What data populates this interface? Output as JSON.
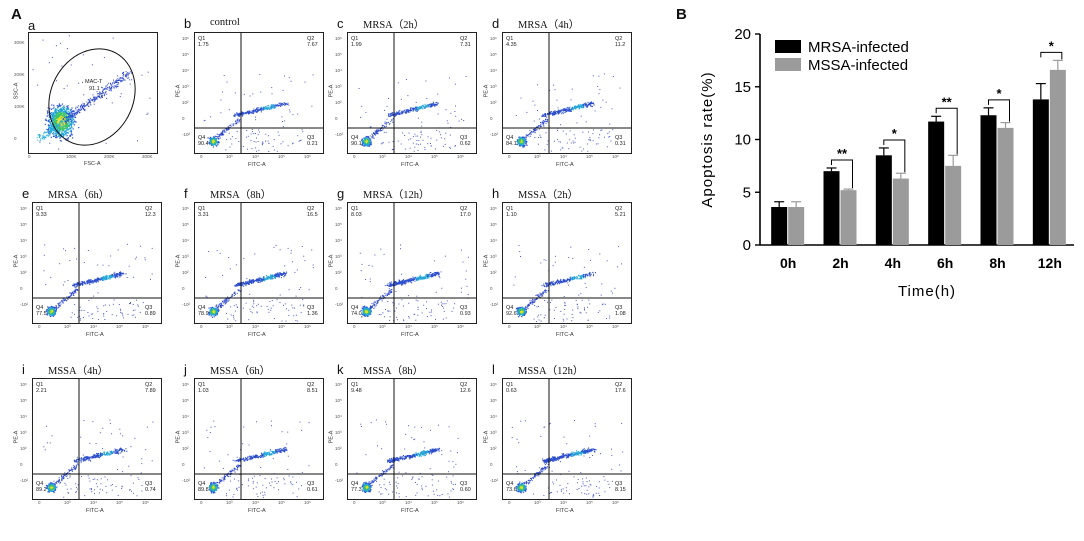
{
  "panels": {
    "A_label": "A",
    "B_label": "B"
  },
  "flow": {
    "gate": {
      "letter": "a",
      "gate_name": "MAC-T",
      "gate_value": "91.1",
      "xlabel": "FSC-A",
      "ylabel": "SSC-A",
      "yticks": [
        "300K",
        "200K",
        "100K",
        "0"
      ],
      "xticks": [
        "0",
        "100K",
        "200K",
        "300K"
      ]
    },
    "plots": [
      {
        "letter": "b",
        "title": "control",
        "q1": "1.75",
        "q2": "7.67",
        "q3": "0.21",
        "q4": "90.4",
        "xlabel": "FITC-A",
        "ylabel": "PE-A"
      },
      {
        "letter": "c",
        "title": "MRSA（2h）",
        "q1": "1.99",
        "q2": "7.31",
        "q3": "0.62",
        "q4": "90.1",
        "xlabel": "FITC-A",
        "ylabel": "PE-A"
      },
      {
        "letter": "d",
        "title": "MRSA（4h）",
        "q1": "4.35",
        "q2": "11.2",
        "q3": "0.31",
        "q4": "84.1",
        "xlabel": "FITC-A",
        "ylabel": "PE-A"
      },
      {
        "letter": "e",
        "title": "MRSA（6h）",
        "q1": "9.33",
        "q2": "12.3",
        "q3": "0.89",
        "q4": "77.5",
        "xlabel": "FITC-A",
        "ylabel": "PE-A"
      },
      {
        "letter": "f",
        "title": "MRSA（8h）",
        "q1": "3.31",
        "q2": "16.5",
        "q3": "1.36",
        "q4": "78.9",
        "xlabel": "FITC-A",
        "ylabel": "PE-A"
      },
      {
        "letter": "g",
        "title": "MRSA（12h）",
        "q1": "8.03",
        "q2": "17.0",
        "q3": "0.93",
        "q4": "74.0",
        "xlabel": "FITC-A",
        "ylabel": "PE-A"
      },
      {
        "letter": "h",
        "title": "MSSA（2h）",
        "q1": "1.10",
        "q2": "5.21",
        "q3": "1.08",
        "q4": "92.6",
        "xlabel": "FITC-A",
        "ylabel": "PE-A"
      },
      {
        "letter": "i",
        "title": "MSSA（4h）",
        "q1": "2.21",
        "q2": "7.89",
        "q3": "0.74",
        "q4": "89.2",
        "xlabel": "FITC-A",
        "ylabel": "PE-A"
      },
      {
        "letter": "j",
        "title": "MSSA（6h）",
        "q1": "1.03",
        "q2": "8.51",
        "q3": "0.61",
        "q4": "89.8",
        "xlabel": "FITC-A",
        "ylabel": "PE-A"
      },
      {
        "letter": "k",
        "title": "MSSA（8h）",
        "q1": "9.48",
        "q2": "12.6",
        "q3": "0.60",
        "q4": "77.3",
        "xlabel": "FITC-A",
        "ylabel": "PE-A"
      },
      {
        "letter": "l",
        "title": "MSSA（12h）",
        "q1": "0.63",
        "q2": "17.6",
        "q3": "8.15",
        "q4": "73.6",
        "xlabel": "FITC-A",
        "ylabel": "PE-A"
      }
    ],
    "quadrant_names": {
      "q1": "Q1",
      "q2": "Q2",
      "q3": "Q3",
      "q4": "Q4"
    },
    "y_ticks": [
      "10⁶",
      "10⁵",
      "10⁴",
      "10³",
      "10²",
      "0",
      "-10²"
    ],
    "x_ticks": [
      "0",
      "10³",
      "10⁴",
      "10⁵",
      "10⁶"
    ]
  },
  "chart_data": {
    "type": "bar",
    "title": "",
    "xlabel": "Time(h)",
    "ylabel": "Apoptosis rate(%)",
    "ylim": [
      0,
      20
    ],
    "yticks": [
      0,
      5,
      10,
      15,
      20
    ],
    "categories": [
      "0h",
      "2h",
      "4h",
      "6h",
      "8h",
      "12h"
    ],
    "series": [
      {
        "name": "MRSA-infected",
        "color": "#000000",
        "values": [
          3.6,
          7.0,
          8.5,
          11.7,
          12.3,
          13.8
        ],
        "errors": [
          0.5,
          0.3,
          0.7,
          0.5,
          0.7,
          1.5
        ]
      },
      {
        "name": "MSSA-infected",
        "color": "#9b9b9b",
        "values": [
          3.6,
          5.2,
          6.3,
          7.5,
          11.1,
          16.6
        ],
        "errors": [
          0.5,
          0.1,
          0.5,
          1.0,
          0.5,
          0.9
        ]
      }
    ],
    "significance": [
      "",
      "**",
      "*",
      "**",
      "*",
      "*"
    ],
    "legend_position": "top-left"
  }
}
